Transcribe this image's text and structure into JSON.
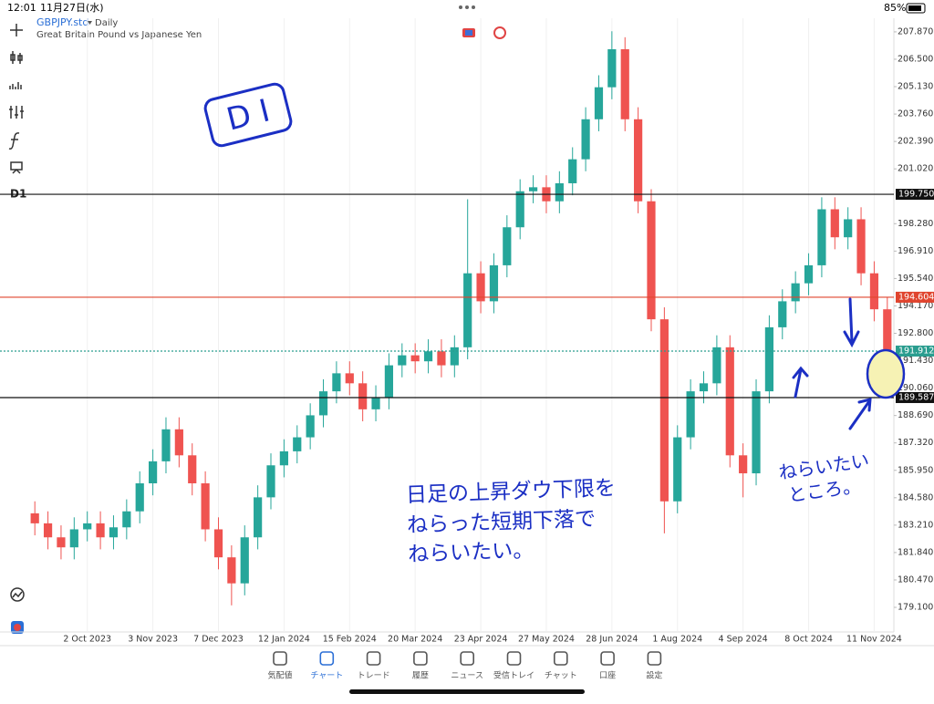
{
  "status_bar": {
    "time": "12:01",
    "date": "11月27日(水)",
    "battery": "85%"
  },
  "header": {
    "symbol": "GBPJPY.std",
    "timeframe": "Daily",
    "description": "Great Britain Pound vs Japanese Yen"
  },
  "toolbar": {
    "period": "D1"
  },
  "chart_data": {
    "type": "candlestick",
    "categories": [
      null,
      null,
      null,
      null,
      "2 Oct 2023",
      null,
      null,
      null,
      null,
      "3 Nov 2023",
      null,
      null,
      null,
      null,
      "7 Dec 2023",
      null,
      null,
      null,
      null,
      "12 Jan 2024",
      null,
      null,
      null,
      null,
      "15 Feb 2024",
      null,
      null,
      null,
      null,
      "20 Mar 2024",
      null,
      null,
      null,
      null,
      "23 Apr 2024",
      null,
      null,
      null,
      null,
      "27 May 2024",
      null,
      null,
      null,
      null,
      "28 Jun 2024",
      null,
      null,
      null,
      null,
      "1 Aug 2024",
      null,
      null,
      null,
      null,
      "4 Sep 2024",
      null,
      null,
      null,
      null,
      "8 Oct 2024",
      null,
      null,
      null,
      null,
      "11 Nov 2024",
      null
    ],
    "open": [
      183.8,
      183.3,
      182.6,
      182.1,
      183.0,
      183.3,
      182.6,
      183.1,
      183.9,
      185.3,
      186.4,
      188.0,
      186.7,
      185.3,
      183.0,
      181.6,
      180.3,
      182.6,
      184.6,
      186.2,
      186.9,
      187.6,
      188.7,
      189.9,
      190.8,
      190.3,
      189.0,
      189.6,
      191.2,
      191.7,
      191.4,
      191.9,
      191.2,
      192.1,
      195.8,
      194.4,
      196.2,
      198.1,
      199.9,
      200.1,
      199.4,
      200.3,
      201.5,
      203.5,
      205.1,
      207.0,
      203.5,
      199.4,
      193.5,
      184.4,
      187.6,
      189.9,
      190.3,
      192.1,
      186.7,
      185.8,
      189.9,
      193.1,
      194.4,
      195.3,
      196.2,
      199.0,
      197.6,
      198.5,
      195.8,
      194.0
    ],
    "high": [
      184.4,
      183.9,
      183.2,
      183.6,
      183.9,
      183.9,
      183.7,
      184.5,
      185.9,
      187.0,
      188.6,
      188.6,
      187.3,
      185.9,
      183.6,
      182.2,
      183.2,
      185.2,
      186.8,
      187.5,
      188.2,
      189.3,
      190.5,
      191.4,
      191.4,
      190.9,
      190.2,
      191.8,
      192.3,
      192.3,
      192.5,
      192.5,
      192.7,
      199.5,
      196.4,
      196.8,
      198.7,
      200.5,
      200.7,
      200.7,
      200.9,
      202.1,
      204.1,
      205.7,
      207.9,
      207.6,
      204.1,
      200.0,
      194.1,
      188.2,
      190.5,
      190.9,
      192.7,
      192.7,
      187.3,
      190.5,
      193.7,
      195.0,
      195.9,
      196.8,
      199.6,
      199.6,
      199.1,
      199.1,
      196.4,
      194.6
    ],
    "low": [
      182.7,
      182.0,
      181.5,
      181.5,
      182.4,
      182.0,
      182.0,
      182.5,
      183.3,
      184.7,
      185.8,
      186.1,
      184.7,
      182.4,
      181.0,
      179.2,
      179.7,
      182.0,
      184.0,
      185.6,
      186.3,
      187.0,
      188.1,
      189.3,
      189.7,
      188.4,
      188.4,
      189.0,
      190.6,
      190.8,
      190.8,
      190.6,
      190.6,
      191.5,
      193.8,
      193.8,
      195.6,
      197.5,
      199.3,
      198.8,
      198.8,
      199.7,
      200.9,
      202.9,
      204.5,
      202.9,
      198.8,
      192.9,
      182.8,
      183.8,
      187.0,
      189.3,
      189.7,
      186.1,
      184.6,
      185.2,
      189.3,
      192.5,
      193.8,
      194.7,
      195.6,
      197.0,
      197.0,
      195.2,
      193.4,
      191.3
    ],
    "close": [
      183.3,
      182.6,
      182.1,
      183.0,
      183.3,
      182.6,
      183.1,
      183.9,
      185.3,
      186.4,
      188.0,
      186.7,
      185.3,
      183.0,
      181.6,
      180.3,
      182.6,
      184.6,
      186.2,
      186.9,
      187.6,
      188.7,
      189.9,
      190.8,
      190.3,
      189.0,
      189.6,
      191.2,
      191.7,
      191.4,
      191.9,
      191.2,
      192.1,
      195.8,
      194.4,
      196.2,
      198.1,
      199.9,
      200.1,
      199.4,
      200.3,
      201.5,
      203.5,
      205.1,
      207.0,
      203.5,
      199.4,
      193.5,
      184.4,
      187.6,
      189.9,
      190.3,
      192.1,
      186.7,
      185.8,
      189.9,
      193.1,
      194.4,
      195.3,
      196.2,
      199.0,
      197.6,
      198.5,
      195.8,
      194.0,
      191.9
    ],
    "up_color": "#26a69a",
    "down_color": "#ef5350",
    "ylim": [
      177.87,
      208.55
    ],
    "yticks": [
      {
        "value": 207.87,
        "label": "207.870"
      },
      {
        "value": 206.5,
        "label": "206.500"
      },
      {
        "value": 205.13,
        "label": "205.130"
      },
      {
        "value": 203.76,
        "label": "203.760"
      },
      {
        "value": 202.39,
        "label": "202.390"
      },
      {
        "value": 201.02,
        "label": "201.020"
      },
      {
        "value": 198.28,
        "label": "198.280"
      },
      {
        "value": 196.91,
        "label": "196.910"
      },
      {
        "value": 195.54,
        "label": "195.540"
      },
      {
        "value": 194.17,
        "label": "194.170"
      },
      {
        "value": 192.8,
        "label": "192.800"
      },
      {
        "value": 191.43,
        "label": "191.430"
      },
      {
        "value": 190.06,
        "label": "190.060"
      },
      {
        "value": 188.69,
        "label": "188.690"
      },
      {
        "value": 187.32,
        "label": "187.320"
      },
      {
        "value": 185.95,
        "label": "185.950"
      },
      {
        "value": 184.58,
        "label": "184.580"
      },
      {
        "value": 183.21,
        "label": "183.210"
      },
      {
        "value": 181.84,
        "label": "181.840"
      },
      {
        "value": 180.47,
        "label": "180.470"
      },
      {
        "value": 179.1,
        "label": "179.100"
      }
    ],
    "price_lines": [
      {
        "value": 199.75,
        "label": "199.750",
        "color": "#111111"
      },
      {
        "value": 194.604,
        "label": "194.604",
        "color": "#e0442e"
      },
      {
        "value": 191.912,
        "label": "191.912",
        "color": "#2a9d8f"
      },
      {
        "value": 189.587,
        "label": "189.587",
        "color": "#111111"
      }
    ]
  },
  "annotations": {
    "box_label": "D I",
    "note_lines": [
      "日足の上昇ダウ下限を",
      "ねらった短期下落で",
      "ねらいたい。"
    ],
    "target_lines": [
      "ねらいたい",
      "ところ。"
    ]
  },
  "nav": {
    "items": [
      "気配値",
      "チャート",
      "トレード",
      "履歴",
      "ニュース",
      "受信トレイ",
      "チャット",
      "口座",
      "設定"
    ],
    "active": 1
  }
}
